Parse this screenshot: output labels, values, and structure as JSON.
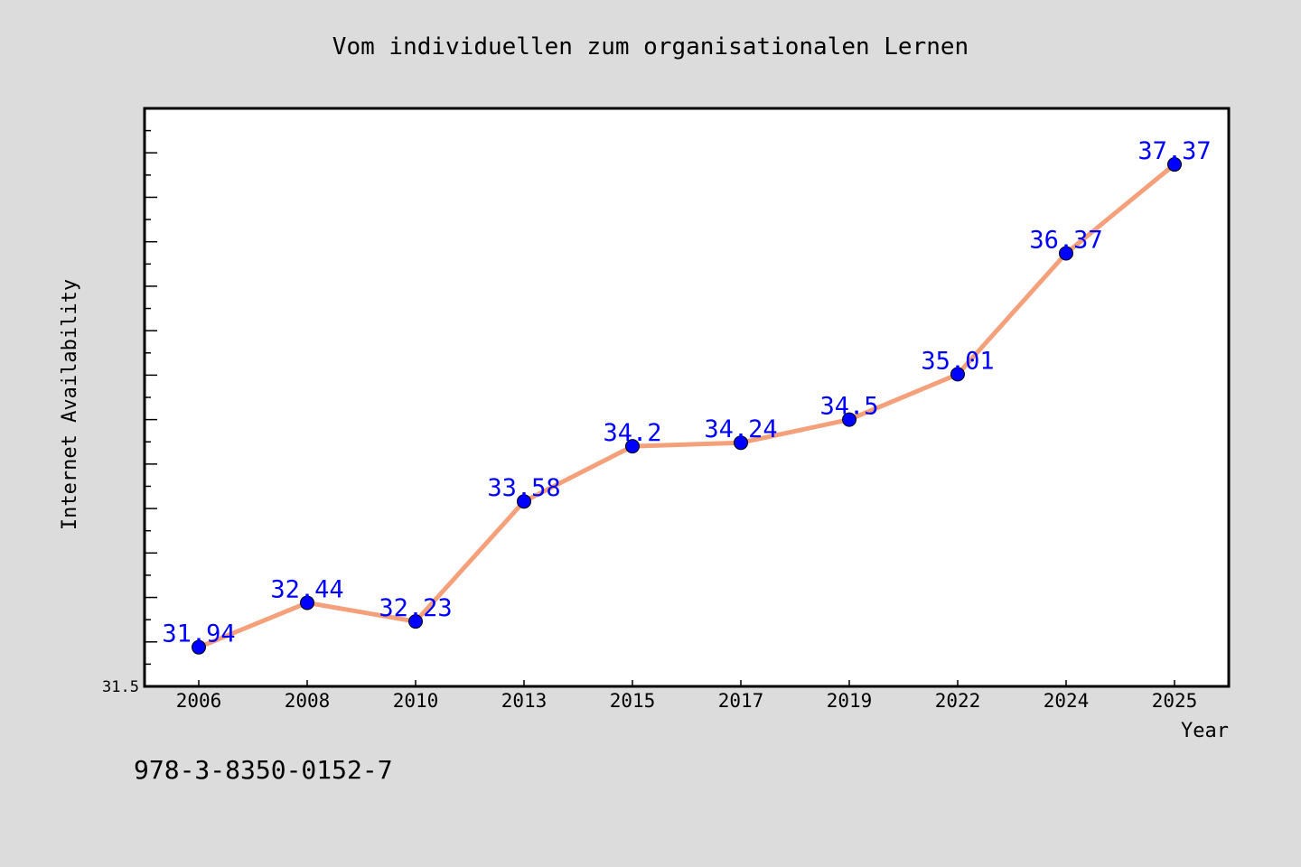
{
  "chart_data": {
    "type": "line",
    "title": "Vom individuellen zum organisationalen Lernen",
    "xlabel": "Year",
    "ylabel": "Internet Availability",
    "categories": [
      "2006",
      "2008",
      "2010",
      "2013",
      "2015",
      "2017",
      "2019",
      "2022",
      "2024",
      "2025"
    ],
    "series": [
      {
        "values": [
          31.94,
          32.44,
          32.23,
          33.58,
          34.2,
          34.24,
          34.5,
          35.01,
          36.37,
          37.37
        ],
        "labels": [
          "31.94",
          "32.44",
          "32.23",
          "33.58",
          "34.2",
          "34.24",
          "34.5",
          "35.01",
          "36.37",
          "37.37"
        ],
        "line_color": "#f4a07a",
        "marker_color": "#0000ff"
      }
    ],
    "y_tick_labels": [
      "31.5"
    ],
    "ylim": [
      31.5,
      38.0
    ],
    "grid": false,
    "legend": "none",
    "data_label_color": "#0000ff"
  },
  "annotation": "978-3-8350-0152-7",
  "colors": {
    "background": "#dcdcdc",
    "plot_area": "#ffffff",
    "axis": "#000000"
  }
}
